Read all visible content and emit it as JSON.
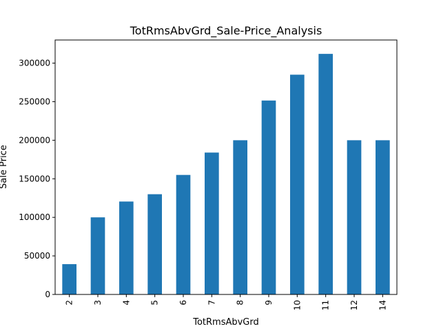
{
  "chart_data": {
    "type": "bar",
    "title": "TotRmsAbvGrd_Sale-Price_Analysis",
    "xlabel": "TotRmsAbvGrd",
    "ylabel": "Sale Price",
    "categories": [
      "2",
      "3",
      "4",
      "5",
      "6",
      "7",
      "8",
      "9",
      "10",
      "11",
      "12",
      "14"
    ],
    "values": [
      39300,
      100000,
      120500,
      130000,
      155000,
      184000,
      200000,
      251500,
      285000,
      312000,
      200000,
      200000
    ],
    "ylim": [
      0,
      330000
    ],
    "yticks": [
      0,
      50000,
      100000,
      150000,
      200000,
      250000,
      300000
    ],
    "ytick_labels": [
      "0",
      "50000",
      "100000",
      "150000",
      "200000",
      "250000",
      "300000"
    ],
    "bar_color": "#1f77b4",
    "grid": false,
    "legend": false
  }
}
